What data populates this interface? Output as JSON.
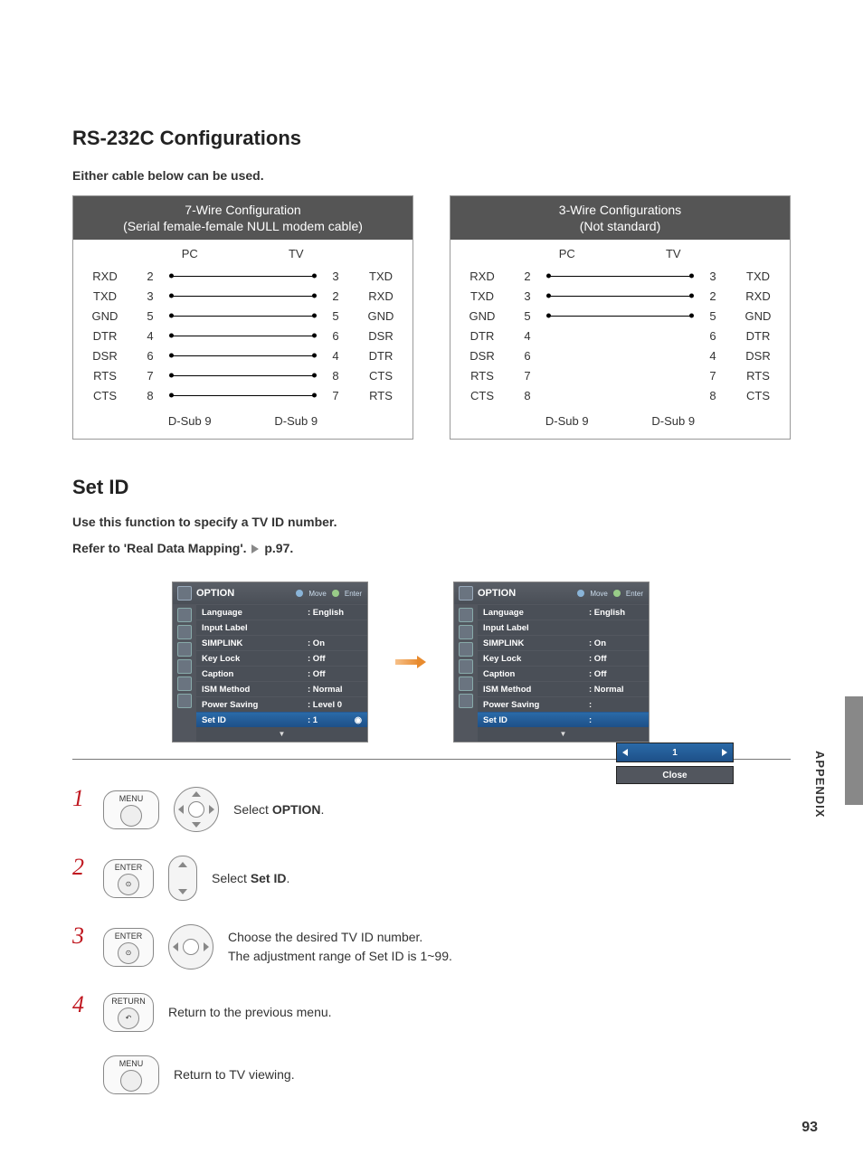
{
  "title": "RS-232C Configurations",
  "subtitle": "Either cable below can be used.",
  "config7": {
    "header1": "7-Wire Configuration",
    "header2": "(Serial female-female NULL modem cable)",
    "col_pc": "PC",
    "col_tv": "TV",
    "rows": [
      {
        "sigL": "RXD",
        "pinL": "2",
        "pinR": "3",
        "sigR": "TXD",
        "wired": true
      },
      {
        "sigL": "TXD",
        "pinL": "3",
        "pinR": "2",
        "sigR": "RXD",
        "wired": true
      },
      {
        "sigL": "GND",
        "pinL": "5",
        "pinR": "5",
        "sigR": "GND",
        "wired": true
      },
      {
        "sigL": "DTR",
        "pinL": "4",
        "pinR": "6",
        "sigR": "DSR",
        "wired": true
      },
      {
        "sigL": "DSR",
        "pinL": "6",
        "pinR": "4",
        "sigR": "DTR",
        "wired": true
      },
      {
        "sigL": "RTS",
        "pinL": "7",
        "pinR": "8",
        "sigR": "CTS",
        "wired": true
      },
      {
        "sigL": "CTS",
        "pinL": "8",
        "pinR": "7",
        "sigR": "RTS",
        "wired": true
      }
    ],
    "footerL": "D-Sub 9",
    "footerR": "D-Sub 9"
  },
  "config3": {
    "header1": "3-Wire Configurations",
    "header2": "(Not standard)",
    "col_pc": "PC",
    "col_tv": "TV",
    "rows": [
      {
        "sigL": "RXD",
        "pinL": "2",
        "pinR": "3",
        "sigR": "TXD",
        "wired": true
      },
      {
        "sigL": "TXD",
        "pinL": "3",
        "pinR": "2",
        "sigR": "RXD",
        "wired": true
      },
      {
        "sigL": "GND",
        "pinL": "5",
        "pinR": "5",
        "sigR": "GND",
        "wired": true
      },
      {
        "sigL": "DTR",
        "pinL": "4",
        "pinR": "6",
        "sigR": "DTR",
        "wired": false
      },
      {
        "sigL": "DSR",
        "pinL": "6",
        "pinR": "4",
        "sigR": "DSR",
        "wired": false
      },
      {
        "sigL": "RTS",
        "pinL": "7",
        "pinR": "7",
        "sigR": "RTS",
        "wired": false
      },
      {
        "sigL": "CTS",
        "pinL": "8",
        "pinR": "8",
        "sigR": "CTS",
        "wired": false
      }
    ],
    "footerL": "D-Sub 9",
    "footerR": "D-Sub 9"
  },
  "setid": {
    "heading": "Set ID",
    "desc1": "Use this function to specify a TV ID number.",
    "desc2a": "Refer to 'Real Data Mapping'. ",
    "desc2b": "p.97",
    "desc2c": "."
  },
  "osd": {
    "title": "OPTION",
    "hint_move": "Move",
    "hint_enter": "Enter",
    "items": [
      {
        "k": "Language",
        "v": ": English"
      },
      {
        "k": "Input Label",
        "v": ""
      },
      {
        "k": "SIMPLINK",
        "v": ": On"
      },
      {
        "k": "Key Lock",
        "v": ": Off"
      },
      {
        "k": "Caption",
        "v": ": Off"
      },
      {
        "k": "ISM Method",
        "v": ": Normal"
      },
      {
        "k": "Power Saving",
        "v": ": Level 0"
      },
      {
        "k": "Set ID",
        "v": ": 1"
      }
    ],
    "spinner_value": "1",
    "close": "Close",
    "items2_power_saving_v": ":"
  },
  "steps": {
    "menu": "MENU",
    "enter": "ENTER",
    "return": "RETURN",
    "s1": "Select OPTION.",
    "s2": "Select Set ID.",
    "s3a": "Choose the desired TV ID number.",
    "s3b": "The adjustment range of Set ID is 1~99.",
    "s4": "Return to the previous menu.",
    "s5": "Return to TV viewing."
  },
  "appendix": "APPENDIX",
  "page_number": "93"
}
